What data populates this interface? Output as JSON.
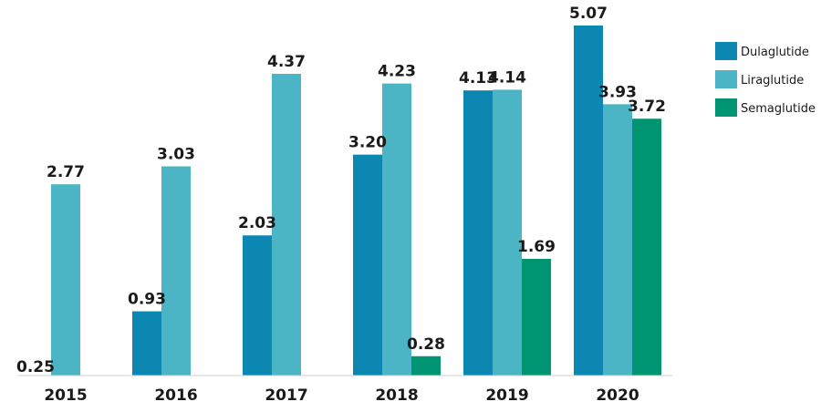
{
  "chart_data": {
    "type": "bar",
    "categories": [
      "2015",
      "2016",
      "2017",
      "2018",
      "2019",
      "2020"
    ],
    "series": [
      {
        "name": "Dulaglutide",
        "color": "#0b87b1",
        "values": [
          null,
          0.93,
          2.03,
          3.2,
          4.13,
          5.07
        ]
      },
      {
        "name": "Liraglutide",
        "color": "#4bb5c6",
        "values": [
          2.77,
          3.03,
          4.37,
          4.23,
          4.14,
          3.93
        ]
      },
      {
        "name": "Semaglutide",
        "color": "#009572",
        "values": [
          null,
          null,
          null,
          0.28,
          1.69,
          3.72
        ]
      }
    ],
    "standalone_labels": [
      {
        "category": "2015",
        "text": "0.25"
      }
    ],
    "title": "",
    "xlabel": "",
    "ylabel": "",
    "ylim": [
      0,
      5.07
    ],
    "grid": false,
    "legend": "right"
  }
}
